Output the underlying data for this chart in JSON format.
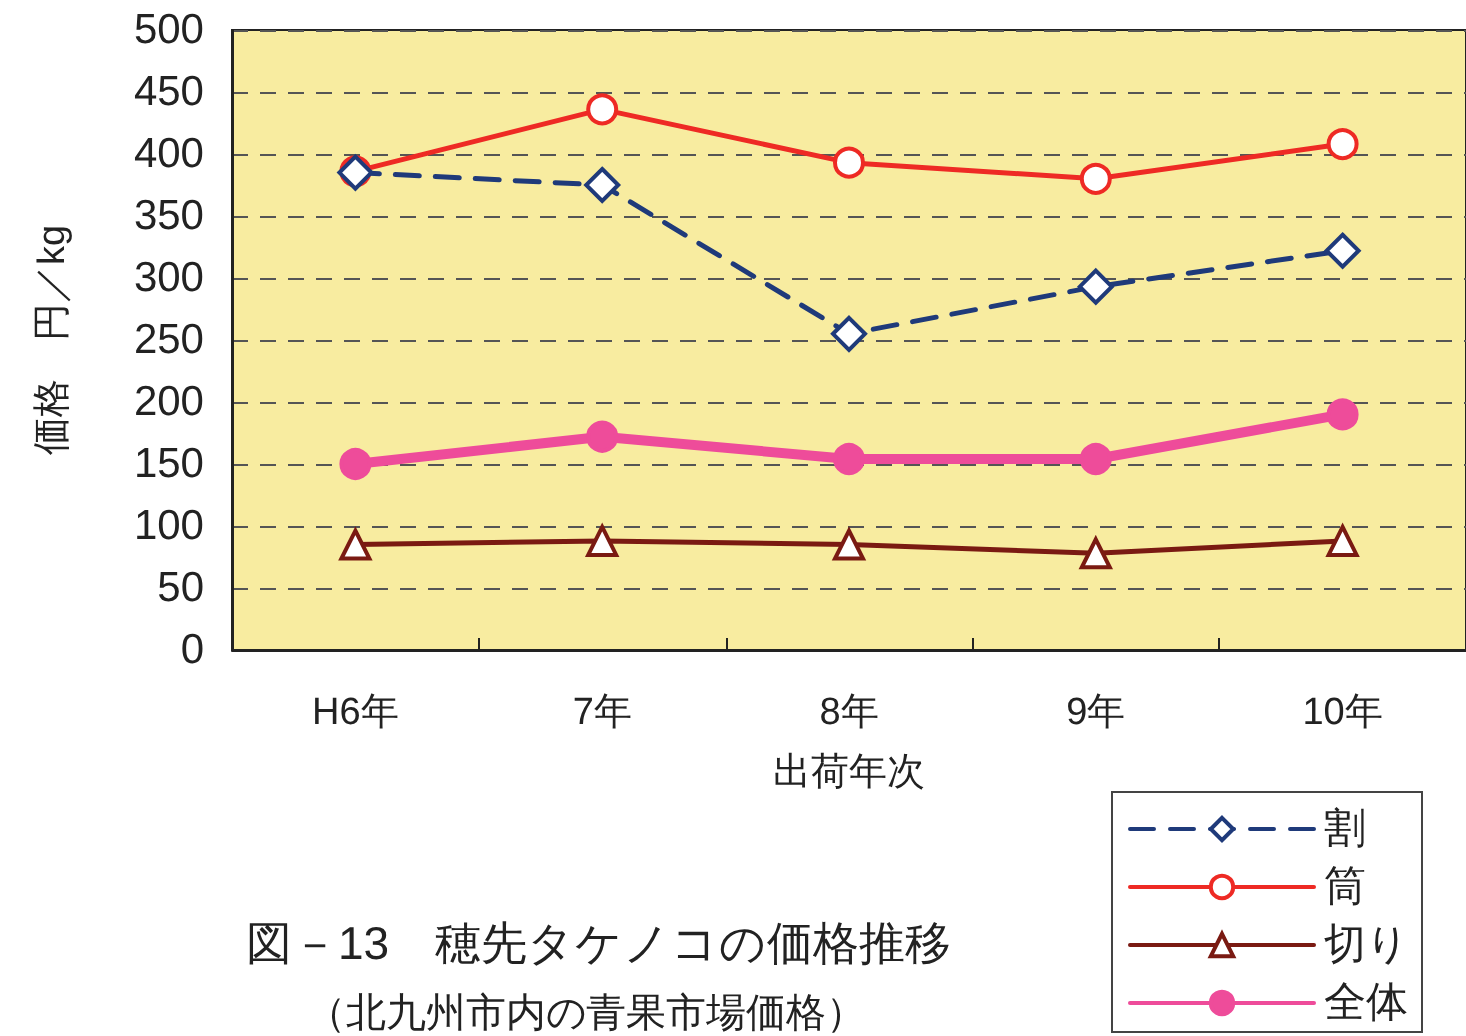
{
  "chart_data": {
    "type": "line",
    "title": "図－13　穂先タケノコの価格推移",
    "subtitle": "（北九州市内の青果市場価格）",
    "xlabel": "出荷年次",
    "ylabel": "価格　円／kg",
    "categories": [
      "H6年",
      "7年",
      "8年",
      "9年",
      "10年"
    ],
    "series": [
      {
        "name": "割",
        "color": "#1f3a7a",
        "values": [
          385,
          375,
          255,
          293,
          322
        ],
        "marker": "diamond",
        "line_style": "dashed"
      },
      {
        "name": "筒",
        "color": "#ee2a24",
        "values": [
          386,
          436,
          393,
          380,
          408
        ],
        "marker": "circle",
        "line_style": "solid"
      },
      {
        "name": "切り",
        "color": "#7a1a12",
        "values": [
          85,
          88,
          85,
          78,
          88
        ],
        "marker": "triangle",
        "line_style": "solid"
      },
      {
        "name": "全体",
        "color": "#ee4c9a",
        "values": [
          150,
          172,
          154,
          154,
          190
        ],
        "marker": "circle",
        "line_style": "solid"
      }
    ],
    "ylim": [
      0,
      500
    ],
    "yticks": [
      0,
      50,
      100,
      150,
      200,
      250,
      300,
      350,
      400,
      450,
      500
    ],
    "grid": "y",
    "legend": "bottom right"
  }
}
